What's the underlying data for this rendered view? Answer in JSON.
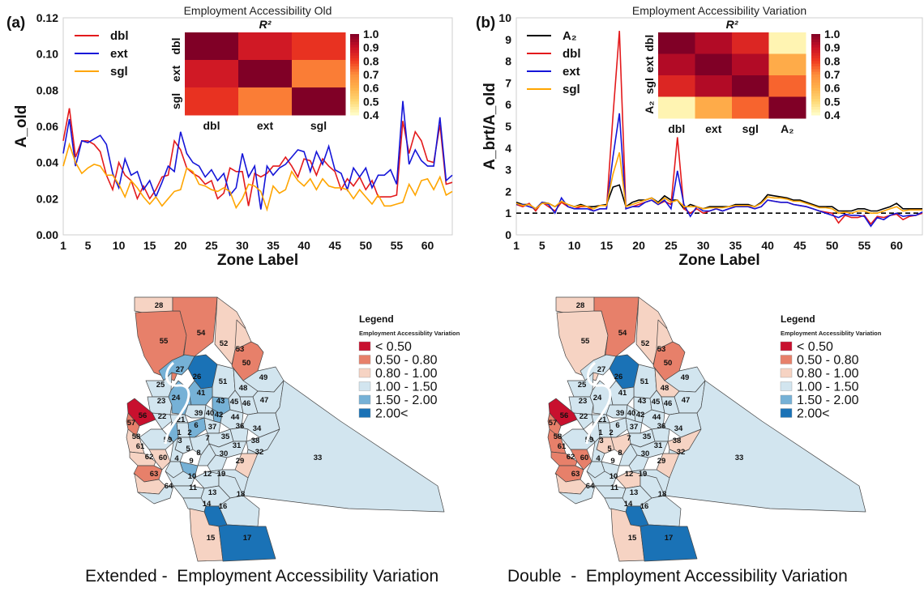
{
  "panel_a_label": "(a)",
  "panel_b_label": "(b)",
  "caption_extended": "Extended -  Employment Accessibility Variation",
  "caption_double": "Double  -  Employment Accessibility Variation",
  "colors": {
    "dbl": "#e31a1c",
    "ext": "#1515d8",
    "sgl": "#ffa500",
    "A2": "#000000",
    "map_outline": "#444444",
    "class_lt050": "#c8102e",
    "class_050_080": "#e7806a",
    "class_080_100": "#f6d3c3",
    "class_100_150": "#d2e5ef",
    "class_150_200": "#76b1d6",
    "class_gt200": "#1a72b6"
  },
  "chart_data": [
    {
      "type": "line",
      "title": "Employment Accessibility Old",
      "xlabel": "Zone Label",
      "ylabel": "A_old",
      "xlim": [
        1,
        64
      ],
      "ylim": [
        0,
        0.12
      ],
      "xticks": [
        1,
        5,
        10,
        15,
        20,
        25,
        30,
        35,
        40,
        45,
        50,
        55,
        60
      ],
      "yticks": [
        "0.00",
        "0.02",
        "0.04",
        "0.06",
        "0.08",
        "0.10",
        "0.12"
      ],
      "legend_position": "top-left",
      "series": [
        {
          "name": "dbl",
          "color": "#e31a1c",
          "values": [
            0.052,
            0.07,
            0.043,
            0.052,
            0.052,
            0.05,
            0.046,
            0.033,
            0.025,
            0.04,
            0.033,
            0.03,
            0.02,
            0.027,
            0.02,
            0.025,
            0.032,
            0.033,
            0.052,
            0.047,
            0.037,
            0.034,
            0.032,
            0.028,
            0.03,
            0.02,
            0.023,
            0.037,
            0.035,
            0.035,
            0.016,
            0.034,
            0.032,
            0.034,
            0.038,
            0.038,
            0.043,
            0.038,
            0.032,
            0.042,
            0.041,
            0.033,
            0.042,
            0.038,
            0.035,
            0.025,
            0.031,
            0.027,
            0.032,
            0.025,
            0.03,
            0.021,
            0.021,
            0.021,
            0.022,
            0.063,
            0.045,
            0.057,
            0.052,
            0.041,
            0.04,
            0.061,
            0.028,
            0.029
          ]
        },
        {
          "name": "ext",
          "color": "#1515d8",
          "values": [
            0.045,
            0.064,
            0.038,
            0.052,
            0.051,
            0.053,
            0.055,
            0.05,
            0.034,
            0.026,
            0.042,
            0.033,
            0.035,
            0.025,
            0.03,
            0.021,
            0.029,
            0.038,
            0.035,
            0.057,
            0.045,
            0.04,
            0.038,
            0.032,
            0.036,
            0.03,
            0.034,
            0.022,
            0.026,
            0.045,
            0.032,
            0.038,
            0.014,
            0.038,
            0.033,
            0.037,
            0.039,
            0.043,
            0.047,
            0.046,
            0.035,
            0.046,
            0.039,
            0.049,
            0.036,
            0.034,
            0.025,
            0.037,
            0.032,
            0.037,
            0.026,
            0.033,
            0.033,
            0.036,
            0.028,
            0.074,
            0.039,
            0.047,
            0.041,
            0.038,
            0.038,
            0.065,
            0.03,
            0.033
          ]
        },
        {
          "name": "sgl",
          "color": "#ffa500",
          "values": [
            0.038,
            0.05,
            0.04,
            0.034,
            0.037,
            0.039,
            0.038,
            0.033,
            0.033,
            0.028,
            0.021,
            0.03,
            0.026,
            0.021,
            0.017,
            0.021,
            0.016,
            0.02,
            0.024,
            0.025,
            0.037,
            0.035,
            0.028,
            0.027,
            0.025,
            0.024,
            0.026,
            0.024,
            0.015,
            0.02,
            0.028,
            0.027,
            0.024,
            0.014,
            0.027,
            0.023,
            0.025,
            0.035,
            0.03,
            0.027,
            0.031,
            0.025,
            0.031,
            0.027,
            0.026,
            0.026,
            0.025,
            0.02,
            0.025,
            0.021,
            0.017,
            0.022,
            0.016,
            0.016,
            0.017,
            0.018,
            0.028,
            0.022,
            0.03,
            0.031,
            0.025,
            0.032,
            0.022,
            0.024
          ]
        }
      ],
      "inset_heatmap": {
        "type": "heatmap",
        "title": "R²",
        "labels": [
          "dbl",
          "ext",
          "sgl"
        ],
        "matrix": [
          [
            1.0,
            0.88,
            0.82
          ],
          [
            0.88,
            1.0,
            0.72
          ],
          [
            0.82,
            0.72,
            1.0
          ]
        ],
        "colorbar_ticks": [
          "1.0",
          "0.9",
          "0.8",
          "0.7",
          "0.6",
          "0.5",
          "0.4"
        ],
        "range": [
          0.4,
          1.0
        ]
      }
    },
    {
      "type": "line",
      "title": "Employment Accessibility Variation",
      "xlabel": "Zone Label",
      "ylabel": "A_brt/A_old",
      "xlim": [
        1,
        64
      ],
      "ylim": [
        0,
        10
      ],
      "xticks": [
        1,
        5,
        10,
        15,
        20,
        25,
        30,
        35,
        40,
        45,
        50,
        55,
        60
      ],
      "yticks": [
        "0",
        "1",
        "2",
        "3",
        "4",
        "5",
        "6",
        "7",
        "8",
        "9",
        "10"
      ],
      "reference_line": 1,
      "legend_position": "top-left",
      "series": [
        {
          "name": "A₂",
          "color": "#000000",
          "values": [
            1.5,
            1.4,
            1.4,
            1.2,
            1.5,
            1.45,
            1.3,
            1.5,
            1.4,
            1.3,
            1.4,
            1.3,
            1.3,
            1.35,
            1.4,
            2.2,
            2.3,
            1.3,
            1.5,
            1.6,
            1.6,
            1.7,
            1.5,
            1.8,
            1.6,
            1.6,
            1.2,
            1.4,
            1.3,
            1.2,
            1.3,
            1.3,
            1.3,
            1.3,
            1.4,
            1.4,
            1.4,
            1.3,
            1.5,
            1.85,
            1.8,
            1.75,
            1.7,
            1.6,
            1.6,
            1.5,
            1.4,
            1.3,
            1.3,
            1.3,
            1.1,
            1.1,
            1.1,
            1.2,
            1.2,
            1.1,
            1.1,
            1.2,
            1.3,
            1.45,
            1.2,
            1.2,
            1.2,
            1.2
          ]
        },
        {
          "name": "dbl",
          "color": "#e31a1c",
          "values": [
            1.4,
            1.3,
            1.45,
            1.1,
            1.5,
            1.3,
            1.1,
            1.5,
            1.3,
            1.2,
            1.3,
            1.3,
            1.1,
            1.2,
            1.2,
            5.5,
            9.4,
            1.2,
            1.3,
            1.4,
            1.5,
            1.6,
            1.4,
            1.55,
            1.4,
            4.5,
            1.2,
            1.0,
            1.2,
            1.0,
            1.1,
            1.2,
            1.1,
            1.2,
            1.3,
            1.3,
            1.3,
            1.2,
            1.3,
            1.6,
            1.55,
            1.5,
            1.5,
            1.4,
            1.35,
            1.3,
            1.2,
            1.1,
            1.05,
            1.0,
            0.55,
            0.9,
            0.8,
            0.8,
            0.9,
            0.5,
            0.85,
            0.8,
            0.9,
            0.95,
            0.7,
            0.85,
            0.9,
            1.0
          ]
        },
        {
          "name": "ext",
          "color": "#1515d8",
          "values": [
            1.4,
            1.4,
            1.3,
            1.2,
            1.5,
            1.4,
            1.0,
            1.7,
            1.3,
            1.2,
            1.2,
            1.2,
            1.1,
            1.2,
            1.2,
            3.6,
            5.6,
            1.2,
            1.3,
            1.3,
            1.5,
            1.6,
            1.4,
            1.6,
            1.2,
            2.95,
            1.4,
            0.85,
            1.3,
            1.1,
            1.1,
            1.2,
            1.1,
            1.2,
            1.3,
            1.3,
            1.3,
            1.2,
            1.3,
            1.6,
            1.55,
            1.5,
            1.5,
            1.4,
            1.35,
            1.3,
            1.2,
            1.1,
            1.0,
            0.9,
            0.8,
            0.95,
            0.9,
            0.9,
            0.85,
            0.4,
            0.8,
            0.7,
            0.9,
            1.0,
            0.85,
            0.9,
            0.9,
            1.05
          ]
        },
        {
          "name": "sgl",
          "color": "#ffa500",
          "values": [
            1.45,
            1.35,
            1.4,
            1.2,
            1.45,
            1.45,
            1.3,
            1.55,
            1.4,
            1.3,
            1.35,
            1.3,
            1.2,
            1.35,
            1.35,
            2.8,
            3.8,
            1.3,
            1.4,
            1.5,
            1.6,
            1.7,
            1.45,
            1.7,
            1.5,
            1.6,
            1.3,
            1.3,
            1.3,
            1.2,
            1.25,
            1.25,
            1.25,
            1.3,
            1.35,
            1.35,
            1.35,
            1.3,
            1.45,
            1.75,
            1.7,
            1.7,
            1.65,
            1.55,
            1.55,
            1.45,
            1.35,
            1.25,
            1.25,
            1.2,
            1.0,
            1.05,
            1.0,
            1.1,
            1.1,
            1.0,
            1.0,
            1.1,
            1.2,
            1.3,
            1.1,
            1.15,
            1.15,
            1.15
          ]
        }
      ],
      "inset_heatmap": {
        "type": "heatmap",
        "title": "R²",
        "labels": [
          "dbl",
          "ext",
          "sgl",
          "A₂"
        ],
        "matrix": [
          [
            1.0,
            0.93,
            0.85,
            0.43
          ],
          [
            0.93,
            1.0,
            0.93,
            0.62
          ],
          [
            0.85,
            0.93,
            1.0,
            0.75
          ],
          [
            0.43,
            0.62,
            0.75,
            1.0
          ]
        ],
        "colorbar_ticks": [
          "1.0",
          "0.9",
          "0.8",
          "0.7",
          "0.6",
          "0.5",
          "0.4"
        ],
        "range": [
          0.4,
          1.0
        ]
      }
    }
  ],
  "maps": {
    "legend_title": "Legend",
    "legend_subtitle": "Employment Accessiblity Variation",
    "legend_classes": [
      {
        "label": "< 0.50",
        "key": "class_lt050"
      },
      {
        "label": "0.50 - 0.80",
        "key": "class_050_080"
      },
      {
        "label": "0.80 - 1.00",
        "key": "class_080_100"
      },
      {
        "label": "1.00 - 1.50",
        "key": "class_100_150"
      },
      {
        "label": "1.50 - 2.00",
        "key": "class_150_200"
      },
      {
        "label": "2.00<",
        "key": "class_gt200"
      }
    ],
    "zones": [
      "28",
      "55",
      "54",
      "52",
      "53",
      "50",
      "49",
      "27",
      "26",
      "25",
      "51",
      "48",
      "47",
      "23",
      "24",
      "41",
      "43",
      "45",
      "46",
      "56",
      "57",
      "22",
      "21",
      "39",
      "40",
      "42",
      "44",
      "36",
      "34",
      "58",
      "2",
      "1",
      "6",
      "37",
      "35",
      "38",
      "59",
      "61",
      "60",
      "5",
      "8",
      "31",
      "33",
      "3",
      "7",
      "30",
      "32",
      "62",
      "4",
      "9",
      "29",
      "63",
      "10",
      "12",
      "19",
      "11",
      "13",
      "18",
      "64",
      "14",
      "16",
      "15",
      "17"
    ],
    "extended_classes": {
      "28": "class_080_100",
      "55": "class_050_080",
      "54": "class_050_080",
      "52": "class_080_100",
      "53": "class_080_100",
      "50": "class_050_080",
      "49": "class_100_150",
      "27": "class_150_200",
      "26": "class_gt200",
      "25": "class_100_150",
      "51": "class_100_150",
      "48": "class_100_150",
      "47": "class_100_150",
      "23": "class_100_150",
      "24": "class_150_200",
      "41": "class_150_200",
      "43": "class_150_200",
      "45": "class_100_150",
      "46": "class_100_150",
      "56": "class_lt050",
      "57": "class_050_080",
      "22": "class_100_150",
      "21": "class_100_150",
      "39": "class_100_150",
      "40": "class_100_150",
      "42": "class_150_200",
      "44": "class_100_150",
      "36": "class_100_150",
      "34": "class_100_150",
      "58": "class_080_100",
      "2": "class_100_150",
      "1": "class_150_200",
      "6": "class_150_200",
      "37": "class_100_150",
      "35": "class_100_150",
      "38": "class_100_150",
      "59": "class_100_150",
      "61": "class_080_100",
      "60": "class_080_100",
      "5": "class_100_150",
      "8": "class_100_150",
      "31": "class_100_150",
      "33": "class_100_150",
      "3": "class_100_150",
      "7": "class_100_150",
      "30": "class_100_150",
      "32": "class_080_100",
      "62": "class_050_080",
      "4": "class_100_150",
      "9": "class_150_200",
      "29": "class_100_150",
      "63": "class_080_100",
      "10": "class_100_150",
      "12": "class_100_150",
      "19": "class_100_150",
      "11": "class_100_150",
      "13": "class_100_150",
      "18": "class_100_150",
      "64": "class_100_150",
      "14": "class_100_150",
      "16": "class_gt200",
      "15": "class_080_100",
      "17": "class_gt200"
    },
    "double_classes": {
      "28": "class_080_100",
      "55": "class_080_100",
      "54": "class_050_080",
      "52": "class_080_100",
      "53": "class_080_100",
      "50": "class_050_080",
      "49": "class_100_150",
      "27": "class_100_150",
      "26": "class_gt200",
      "25": "class_100_150",
      "51": "class_100_150",
      "48": "class_080_100",
      "47": "class_100_150",
      "23": "class_100_150",
      "24": "class_100_150",
      "41": "class_100_150",
      "43": "class_100_150",
      "45": "class_100_150",
      "46": "class_100_150",
      "56": "class_lt050",
      "57": "class_050_080",
      "22": "class_100_150",
      "21": "class_100_150",
      "39": "class_100_150",
      "40": "class_100_150",
      "42": "class_100_150",
      "44": "class_100_150",
      "36": "class_100_150",
      "34": "class_100_150",
      "58": "class_050_080",
      "2": "class_100_150",
      "1": "class_100_150",
      "6": "class_100_150",
      "37": "class_100_150",
      "35": "class_100_150",
      "38": "class_080_100",
      "59": "class_100_150",
      "61": "class_050_080",
      "60": "class_050_080",
      "5": "class_080_100",
      "8": "class_080_100",
      "31": "class_100_150",
      "33": "class_100_150",
      "3": "class_100_150",
      "7": "class_100_150",
      "30": "class_100_150",
      "32": "class_080_100",
      "62": "class_050_080",
      "4": "class_100_150",
      "9": "class_100_150",
      "29": "class_100_150",
      "63": "class_080_100",
      "10": "class_100_150",
      "12": "class_080_100",
      "19": "class_100_150",
      "11": "class_100_150",
      "13": "class_100_150",
      "18": "class_100_150",
      "64": "class_100_150",
      "14": "class_100_150",
      "16": "class_gt200",
      "15": "class_080_100",
      "17": "class_gt200"
    }
  }
}
